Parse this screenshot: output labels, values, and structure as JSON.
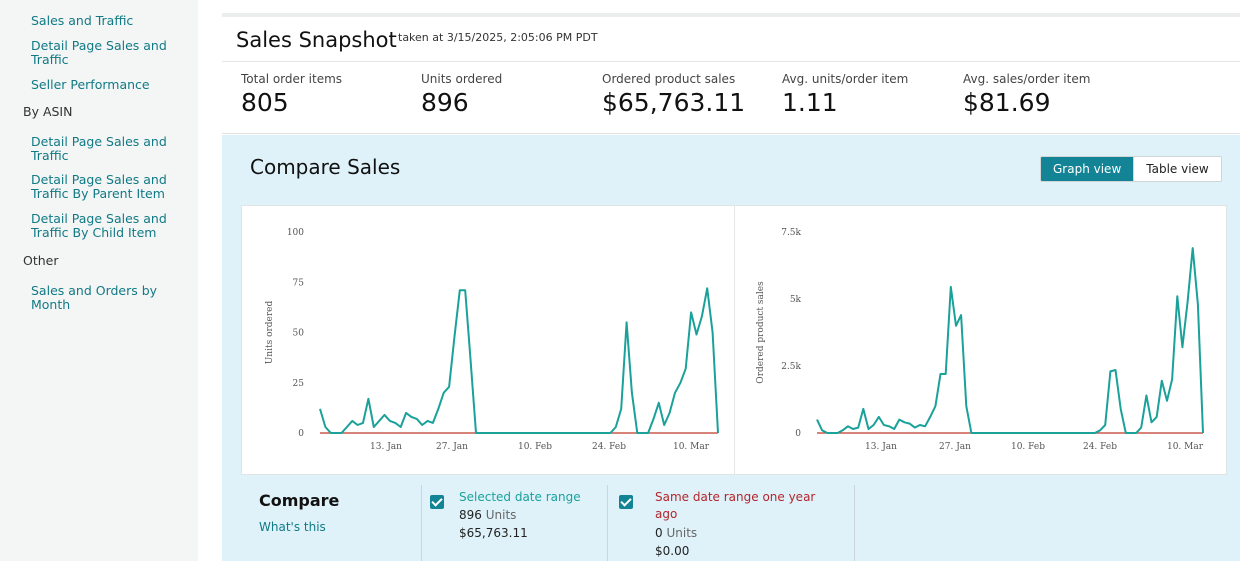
{
  "sidebar": {
    "links": [
      "Sales and Traffic",
      "Detail Page Sales and Traffic",
      "Seller Performance"
    ],
    "group_by_asin": "By ASIN",
    "asin_links": [
      "Detail Page Sales and Traffic",
      "Detail Page Sales and Traffic By Parent Item",
      "Detail Page Sales and Traffic By Child Item"
    ],
    "group_other": "Other",
    "other_links": [
      "Sales and Orders by Month"
    ]
  },
  "snapshot": {
    "title": "Sales Snapshot",
    "taken": "taken at 3/15/2025, 2:05:06 PM PDT",
    "metrics": [
      {
        "label": "Total order items",
        "value": "805"
      },
      {
        "label": "Units ordered",
        "value": "896"
      },
      {
        "label": "Ordered product sales",
        "value": "$65,763.11"
      },
      {
        "label": "Avg. units/order item",
        "value": "1.11"
      },
      {
        "label": "Avg. sales/order item",
        "value": "$81.69"
      }
    ]
  },
  "compare": {
    "title": "Compare Sales",
    "view_toggle": {
      "graph": "Graph view",
      "table": "Table view",
      "selected": "graph"
    },
    "heading": "Compare",
    "whats_this": "What's this",
    "selected": {
      "title": "Selected date range",
      "units": "896",
      "units_label": "Units",
      "sales": "$65,763.11"
    },
    "last_year": {
      "title": "Same date range one year ago",
      "units": "0",
      "units_label": "Units",
      "sales": "$0.00"
    }
  },
  "colors": {
    "accent": "#138496",
    "link": "#117a85",
    "series_current": "#1aa19a",
    "series_last_year": "#c0392b",
    "panel_bg": "#dff2fa"
  },
  "chart_data": [
    {
      "type": "line",
      "ylabel": "Units ordered",
      "ylim": [
        0,
        100
      ],
      "yticks": [
        "0",
        "25",
        "50",
        "75",
        "100"
      ],
      "xticks": [
        "13. Jan",
        "27. Jan",
        "10. Feb",
        "24. Feb",
        "10. Mar"
      ],
      "grid": false,
      "series": [
        {
          "name": "Selected date range",
          "values": [
            12,
            3,
            0,
            0,
            0,
            3,
            6,
            4,
            5,
            17,
            3,
            6,
            9,
            6,
            5,
            3,
            10,
            8,
            7,
            4,
            6,
            5,
            12,
            20,
            23,
            48,
            71,
            71,
            36,
            0,
            0,
            0,
            0,
            0,
            0,
            0,
            0,
            0,
            0,
            0,
            0,
            0,
            0,
            0,
            0,
            0,
            0,
            0,
            0,
            0,
            0,
            0,
            0,
            0,
            0,
            3,
            12,
            55,
            20,
            0,
            0,
            0,
            7,
            15,
            4,
            10,
            20,
            25,
            32,
            60,
            49,
            58,
            72,
            50,
            0
          ]
        },
        {
          "name": "Same date range one year ago",
          "values": [
            0,
            0,
            0,
            0,
            0,
            0,
            0,
            0,
            0,
            0,
            0,
            0,
            0,
            0,
            0,
            0,
            0,
            0,
            0,
            0,
            0,
            0,
            0,
            0,
            0,
            0,
            0,
            0,
            0,
            0,
            0,
            0,
            0,
            0,
            0,
            0,
            0,
            0,
            0,
            0,
            0,
            0,
            0,
            0,
            0,
            0,
            0,
            0,
            0,
            0,
            0,
            0,
            0,
            0,
            0,
            0,
            0,
            0,
            0,
            0,
            0,
            0,
            0,
            0,
            0,
            0,
            0,
            0,
            0,
            0,
            0,
            0,
            0,
            0,
            0
          ]
        }
      ]
    },
    {
      "type": "line",
      "ylabel": "Ordered product sales",
      "ylim": [
        0,
        7500
      ],
      "yticks": [
        "0",
        "2.5k",
        "5k",
        "7.5k"
      ],
      "xticks": [
        "13. Jan",
        "27. Jan",
        "10. Feb",
        "24. Feb",
        "10. Mar"
      ],
      "grid": false,
      "series": [
        {
          "name": "Selected date range",
          "values": [
            500,
            100,
            0,
            0,
            0,
            100,
            250,
            150,
            200,
            900,
            150,
            300,
            600,
            300,
            250,
            150,
            500,
            400,
            350,
            200,
            300,
            250,
            600,
            1000,
            2200,
            2200,
            5450,
            4000,
            4400,
            1000,
            0,
            0,
            0,
            0,
            0,
            0,
            0,
            0,
            0,
            0,
            0,
            0,
            0,
            0,
            0,
            0,
            0,
            0,
            0,
            0,
            0,
            0,
            0,
            0,
            0,
            100,
            300,
            2300,
            2350,
            900,
            0,
            0,
            0,
            200,
            1400,
            400,
            600,
            1950,
            1200,
            2000,
            5100,
            3200,
            4900,
            6900,
            4800,
            0
          ]
        },
        {
          "name": "Same date range one year ago",
          "values": [
            0,
            0,
            0,
            0,
            0,
            0,
            0,
            0,
            0,
            0,
            0,
            0,
            0,
            0,
            0,
            0,
            0,
            0,
            0,
            0,
            0,
            0,
            0,
            0,
            0,
            0,
            0,
            0,
            0,
            0,
            0,
            0,
            0,
            0,
            0,
            0,
            0,
            0,
            0,
            0,
            0,
            0,
            0,
            0,
            0,
            0,
            0,
            0,
            0,
            0,
            0,
            0,
            0,
            0,
            0,
            0,
            0,
            0,
            0,
            0,
            0,
            0,
            0,
            0,
            0,
            0,
            0,
            0,
            0,
            0,
            0,
            0,
            0,
            0,
            0,
            0
          ]
        }
      ]
    }
  ]
}
